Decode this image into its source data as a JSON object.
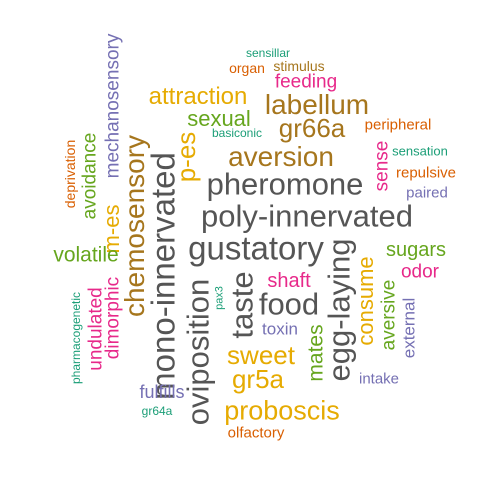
{
  "colors": {
    "green": "#1b9e77",
    "orange": "#d95f02",
    "purple": "#7570b3",
    "magenta": "#e7298a",
    "lime": "#66a61e",
    "gold": "#e6ab02",
    "brown": "#a6761d",
    "gray": "#555555"
  },
  "words": [
    "sensillar",
    "organ",
    "stimulus",
    "feeding",
    "mechanosensory",
    "attraction",
    "labellum",
    "basiconic",
    "sexual",
    "gr66a",
    "peripheral",
    "p-es",
    "deprivation",
    "avoidance",
    "chemosensory",
    "aversion",
    "sense",
    "sensation",
    "pheromone",
    "repulsive",
    "paired",
    "m-es",
    "poly-innervated",
    "volatile",
    "gustatory",
    "sugars",
    "mono-innervated",
    "odor",
    "shaft",
    "pharmacogenetic",
    "undulated",
    "dimorphic",
    "food",
    "consume",
    "pax3",
    "taste",
    "egg-laying",
    "aversive",
    "toxin",
    "external",
    "oviposition",
    "sweet",
    "mates",
    "gr5a",
    "intake",
    "fulfills",
    "proboscis",
    "gr64a",
    "olfactory"
  ]
}
